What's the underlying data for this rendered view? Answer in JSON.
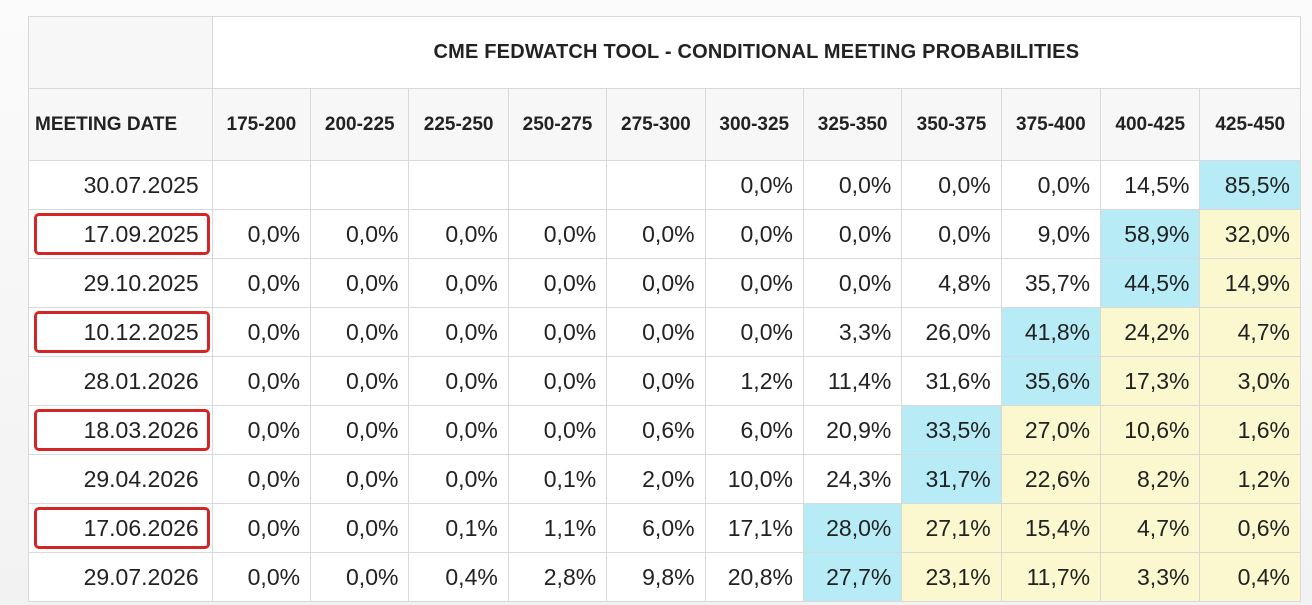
{
  "chart_data": {
    "type": "table",
    "title": "CME FEDWATCH TOOL - CONDITIONAL MEETING PROBABILITIES",
    "date_header": "MEETING DATE",
    "columns": [
      "175-200",
      "200-225",
      "225-250",
      "250-275",
      "275-300",
      "300-325",
      "325-350",
      "350-375",
      "375-400",
      "400-425",
      "425-450"
    ],
    "rows": [
      {
        "date": "30.07.2025",
        "boxed": false,
        "cells": [
          "",
          "",
          "",
          "",
          "",
          "0,0%",
          "0,0%",
          "0,0%",
          "0,0%",
          "14,5%",
          "85,5%"
        ],
        "highlight": {
          "10": "blue"
        }
      },
      {
        "date": "17.09.2025",
        "boxed": true,
        "cells": [
          "0,0%",
          "0,0%",
          "0,0%",
          "0,0%",
          "0,0%",
          "0,0%",
          "0,0%",
          "0,0%",
          "9,0%",
          "58,9%",
          "32,0%"
        ],
        "highlight": {
          "9": "blue",
          "10": "yellow"
        }
      },
      {
        "date": "29.10.2025",
        "boxed": false,
        "cells": [
          "0,0%",
          "0,0%",
          "0,0%",
          "0,0%",
          "0,0%",
          "0,0%",
          "0,0%",
          "4,8%",
          "35,7%",
          "44,5%",
          "14,9%"
        ],
        "highlight": {
          "9": "blue",
          "10": "yellow"
        }
      },
      {
        "date": "10.12.2025",
        "boxed": true,
        "cells": [
          "0,0%",
          "0,0%",
          "0,0%",
          "0,0%",
          "0,0%",
          "0,0%",
          "3,3%",
          "26,0%",
          "41,8%",
          "24,2%",
          "4,7%"
        ],
        "highlight": {
          "8": "blue",
          "9": "yellow",
          "10": "yellow"
        }
      },
      {
        "date": "28.01.2026",
        "boxed": false,
        "cells": [
          "0,0%",
          "0,0%",
          "0,0%",
          "0,0%",
          "0,0%",
          "1,2%",
          "11,4%",
          "31,6%",
          "35,6%",
          "17,3%",
          "3,0%"
        ],
        "highlight": {
          "8": "blue",
          "9": "yellow",
          "10": "yellow"
        }
      },
      {
        "date": "18.03.2026",
        "boxed": true,
        "cells": [
          "0,0%",
          "0,0%",
          "0,0%",
          "0,0%",
          "0,6%",
          "6,0%",
          "20,9%",
          "33,5%",
          "27,0%",
          "10,6%",
          "1,6%"
        ],
        "highlight": {
          "7": "blue",
          "8": "yellow",
          "9": "yellow",
          "10": "yellow"
        }
      },
      {
        "date": "29.04.2026",
        "boxed": false,
        "cells": [
          "0,0%",
          "0,0%",
          "0,0%",
          "0,1%",
          "2,0%",
          "10,0%",
          "24,3%",
          "31,7%",
          "22,6%",
          "8,2%",
          "1,2%"
        ],
        "highlight": {
          "7": "blue",
          "8": "yellow",
          "9": "yellow",
          "10": "yellow"
        }
      },
      {
        "date": "17.06.2026",
        "boxed": true,
        "cells": [
          "0,0%",
          "0,0%",
          "0,1%",
          "1,1%",
          "6,0%",
          "17,1%",
          "28,0%",
          "27,1%",
          "15,4%",
          "4,7%",
          "0,6%"
        ],
        "highlight": {
          "6": "blue",
          "7": "yellow",
          "8": "yellow",
          "9": "yellow",
          "10": "yellow"
        }
      },
      {
        "date": "29.07.2026",
        "boxed": false,
        "cells": [
          "0,0%",
          "0,0%",
          "0,4%",
          "2,8%",
          "9,8%",
          "20,8%",
          "27,7%",
          "23,1%",
          "11,7%",
          "3,3%",
          "0,4%"
        ],
        "highlight": {
          "6": "blue",
          "7": "yellow",
          "8": "yellow",
          "9": "yellow",
          "10": "yellow"
        }
      }
    ]
  },
  "colors": {
    "blue_highlight": "#b7ecf7",
    "yellow_highlight": "#fbf8cf",
    "marker": "#d32727"
  }
}
